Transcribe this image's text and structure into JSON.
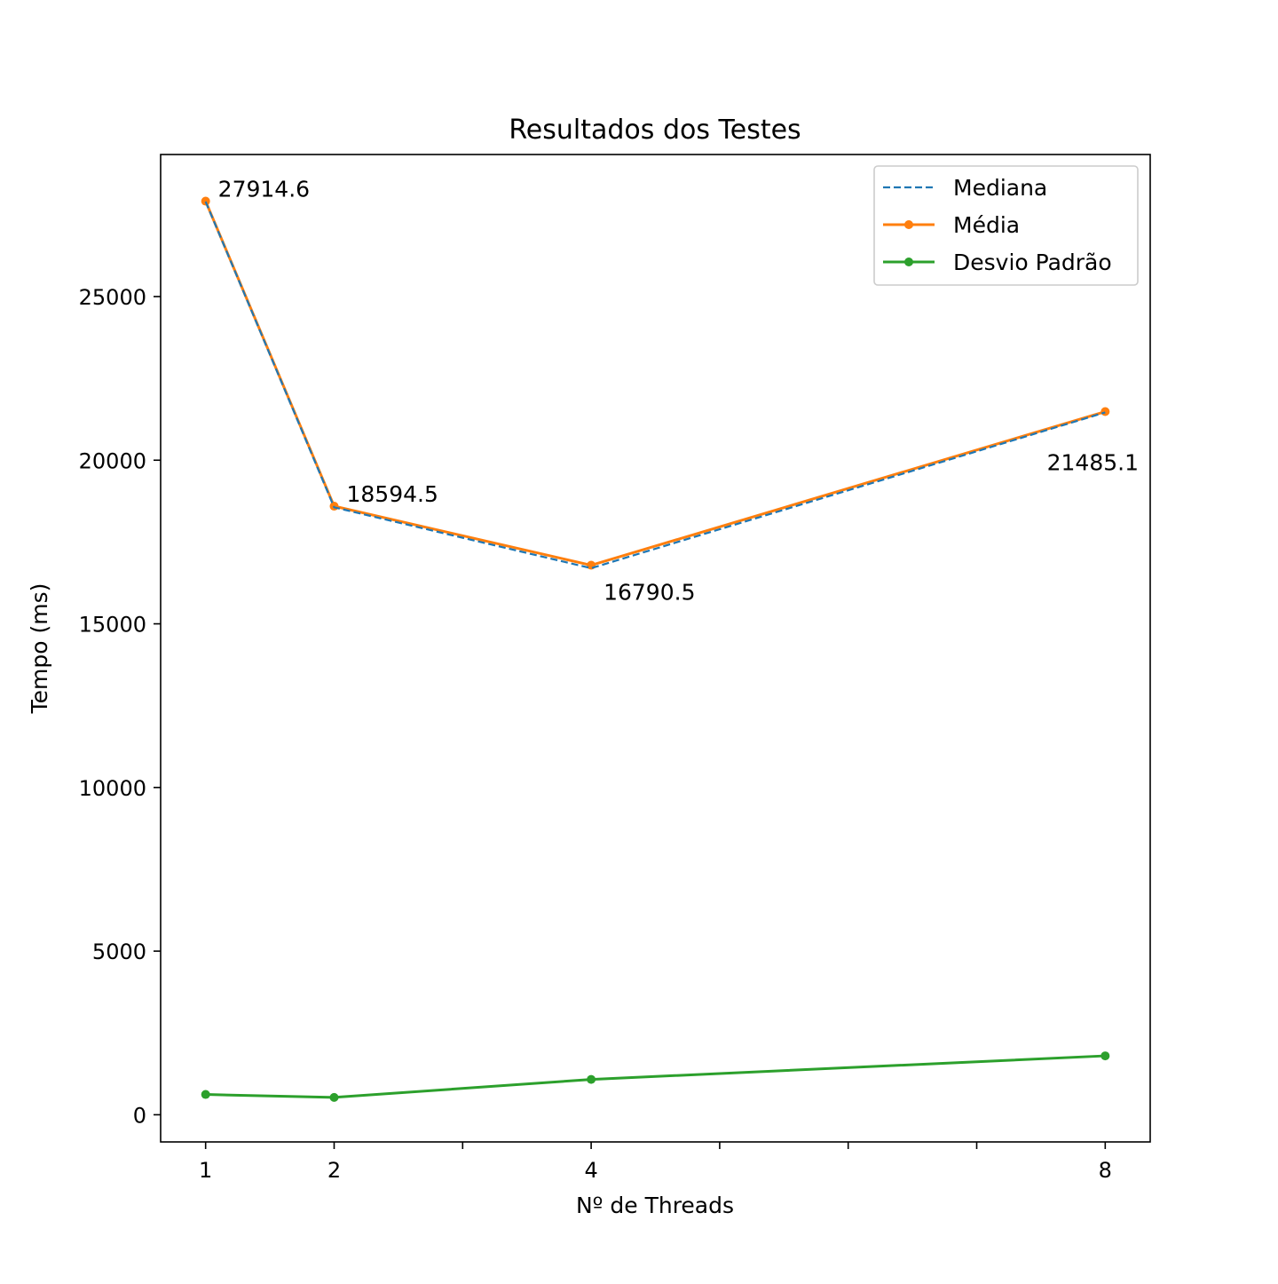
{
  "chart_data": {
    "type": "line",
    "title": "Resultados dos Testes",
    "xlabel": "Nº de Threads",
    "ylabel": "Tempo (ms)",
    "xlim": [
      0.65,
      8.35
    ],
    "ylim": [
      -830,
      29340
    ],
    "x_ticks": [
      1,
      2,
      4,
      8
    ],
    "x_minor_ticks": [
      3,
      5,
      6,
      7
    ],
    "y_ticks": [
      0,
      5000,
      10000,
      15000,
      20000,
      25000
    ],
    "grid": false,
    "legend_position": "top-right",
    "x": [
      1,
      2,
      4,
      8
    ],
    "series": [
      {
        "name": "Mediana",
        "values": [
          27900,
          18560,
          16700,
          21460
        ],
        "color": "#1f77b4",
        "style": "dashed",
        "markers": false
      },
      {
        "name": "Média",
        "values": [
          27914.6,
          18594.5,
          16790.5,
          21485.1
        ],
        "color": "#ff7f0e",
        "style": "solid",
        "markers": true
      },
      {
        "name": "Desvio Padrão",
        "values": [
          620,
          530,
          1080,
          1800
        ],
        "color": "#2ca02c",
        "style": "solid",
        "markers": true
      }
    ],
    "annotations": [
      {
        "x": 1,
        "y": 27914.6,
        "text": "27914.6",
        "placement": "above-right"
      },
      {
        "x": 2,
        "y": 18594.5,
        "text": "18594.5",
        "placement": "above-right"
      },
      {
        "x": 4,
        "y": 16790.5,
        "text": "16790.5",
        "placement": "below-right"
      },
      {
        "x": 8,
        "y": 21485.1,
        "text": "21485.1",
        "placement": "below"
      }
    ]
  }
}
